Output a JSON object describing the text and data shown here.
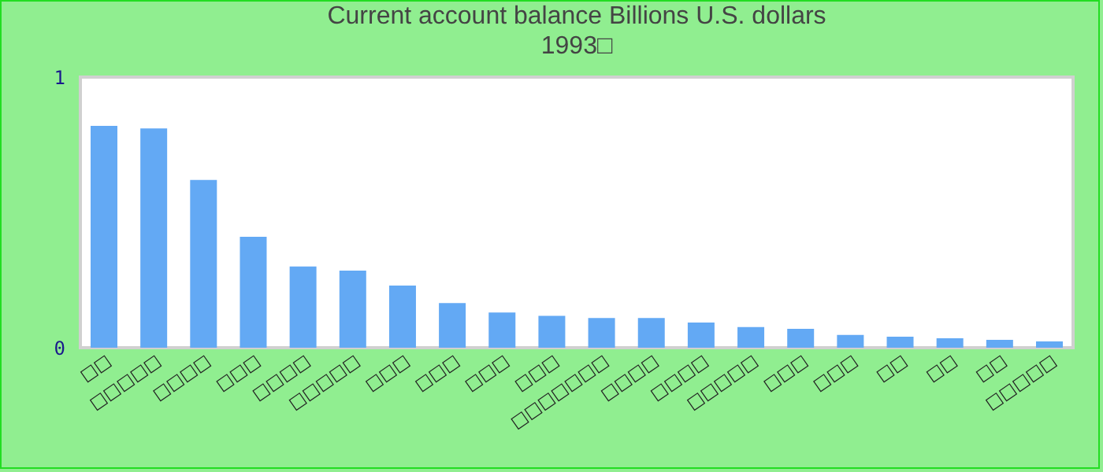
{
  "chart_data": {
    "type": "bar",
    "title": "Current account balance Billions U.S. dollars",
    "subtitle": "1993□",
    "categories": [
      "□□",
      "□□□□□",
      "□□□□",
      "□□□",
      "□□□□",
      "□□□□□",
      "□□□",
      "□□□",
      "□□□",
      "□□□",
      "□□□□□□□",
      "□□□□",
      "□□□□",
      "□□□□□",
      "□□□",
      "□□□",
      "□□",
      "□□",
      "□□",
      "□□□□□"
    ],
    "values": [
      0.82,
      0.81,
      0.62,
      0.41,
      0.3,
      0.285,
      0.23,
      0.165,
      0.13,
      0.118,
      0.11,
      0.11,
      0.093,
      0.076,
      0.07,
      0.047,
      0.041,
      0.035,
      0.029,
      0.023
    ],
    "color": "#63a9f4",
    "ylim": [
      0,
      1
    ],
    "yticks": [
      0,
      1
    ],
    "grid": false
  }
}
